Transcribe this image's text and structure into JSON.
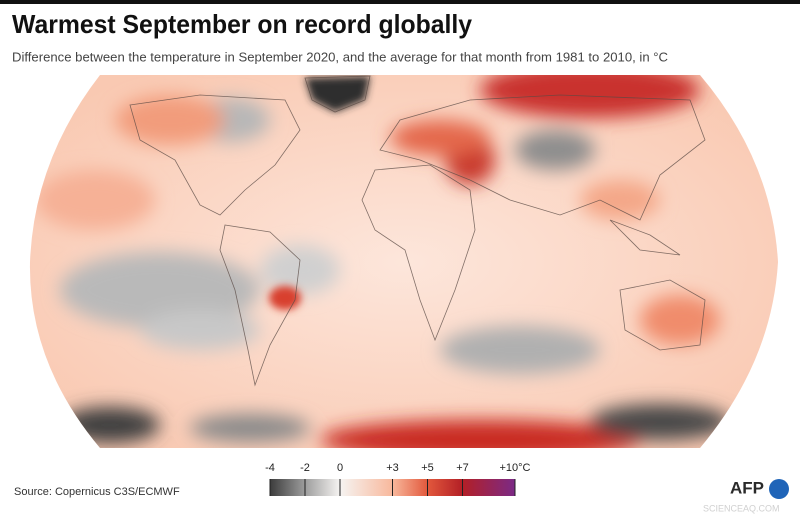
{
  "title": "Warmest September on record globally",
  "subtitle": "Difference between the temperature in September 2020, and the average for that month from 1981 to 2010, in °C",
  "source": "Source: Copernicus C3S/ECMWF",
  "legend": {
    "ticks": [
      -4,
      -2,
      0,
      {
        "value": 3,
        "label": "+3"
      },
      {
        "value": 5,
        "label": "+5"
      },
      {
        "value": 7,
        "label": "+7"
      },
      {
        "value": 10,
        "label": "+10°C"
      }
    ],
    "colors": [
      "#3c3c3c",
      "#9d9d9d",
      "#f6f4f2",
      "#f8b89c",
      "#e2583c",
      "#b31f26",
      "#7b2a86"
    ]
  },
  "logo": "AFP",
  "watermark": "SCIENCEAQ.COM"
}
